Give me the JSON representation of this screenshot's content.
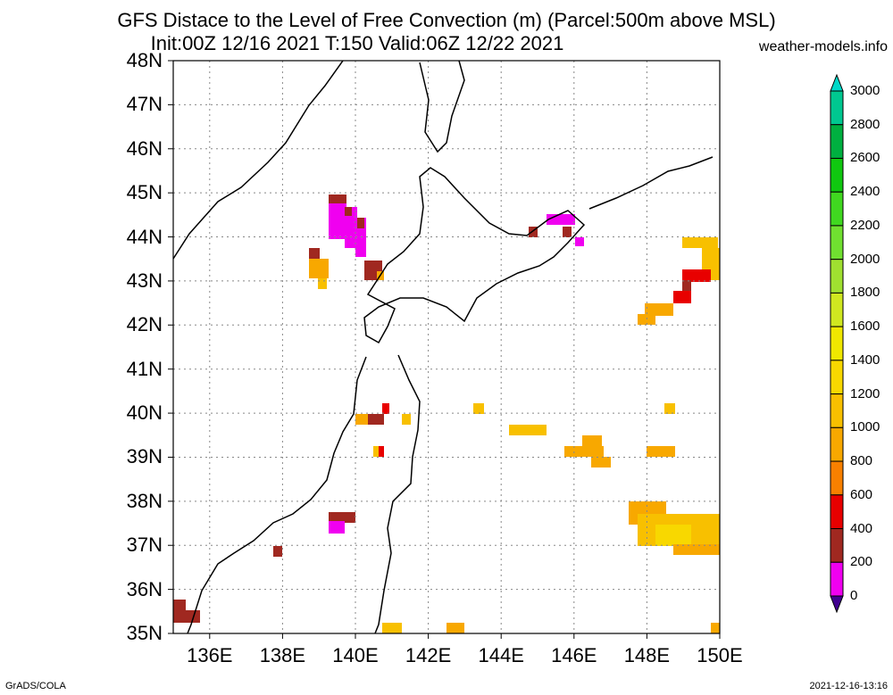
{
  "header": {
    "title_line1": "GFS Distace to the Level of Free Convection (m) (Parcel:500m above MSL)",
    "title_line2": "Init:00Z 12/16 2021 T:150 Valid:06Z 12/22 2021",
    "site": "weather-models.info"
  },
  "map": {
    "lat_labels": [
      "48N",
      "47N",
      "46N",
      "45N",
      "44N",
      "43N",
      "42N",
      "41N",
      "40N",
      "39N",
      "38N",
      "37N",
      "36N",
      "35N"
    ],
    "lon_labels": [
      "136E",
      "138E",
      "140E",
      "142E",
      "144E",
      "146E",
      "148E",
      "150E"
    ],
    "lat_values": [
      48,
      47,
      46,
      45,
      44,
      43,
      42,
      41,
      40,
      39,
      38,
      37,
      36,
      35
    ],
    "lon_values": [
      136,
      138,
      140,
      142,
      144,
      146,
      148,
      150
    ],
    "lon_range": [
      135,
      150
    ],
    "lat_range": [
      35,
      48
    ],
    "region": "Northern Japan (Hokkaido and Tohoku)"
  },
  "colorbar": {
    "labels": [
      "3000",
      "2800",
      "2600",
      "2400",
      "2200",
      "2000",
      "1800",
      "1600",
      "1400",
      "1200",
      "1000",
      "800",
      "600",
      "400",
      "200",
      "0"
    ],
    "colors": [
      "#00d8c8",
      "#00c890",
      "#00b040",
      "#10c810",
      "#40d820",
      "#70e030",
      "#a0e030",
      "#d0e820",
      "#f0e800",
      "#f8d800",
      "#f8c000",
      "#f8a800",
      "#f88000",
      "#e80000",
      "#a02820",
      "#f000f0",
      "#400090"
    ]
  },
  "footer": {
    "left": "GrADS/COLA",
    "right": "2021-12-16-13:16"
  }
}
